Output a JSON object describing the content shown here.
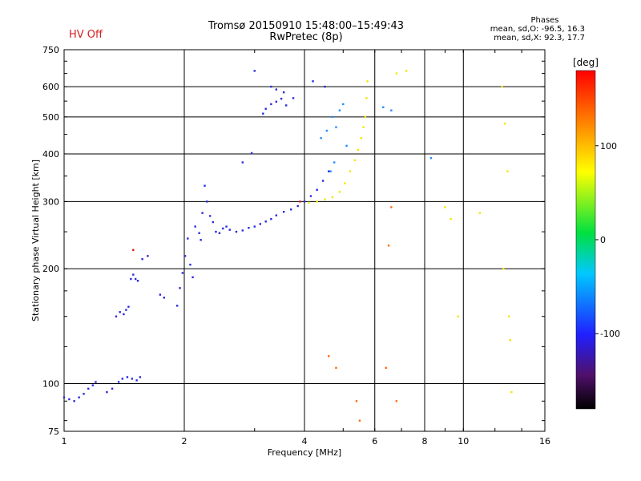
{
  "header": {
    "status": "HV Off",
    "title_line1": "Tromsø 20150910 15:48:00–15:49:43",
    "title_line2": "RwPretec (8p)",
    "stats_title": "Phases",
    "stats_line1": "mean, sd,O: -96.5, 16.3",
    "stats_line2": "mean, sd,X:  92.3, 17.7"
  },
  "colors": {
    "status": "#d42020",
    "axis": "#000000",
    "grid": "#000000"
  },
  "chart_data": {
    "type": "scatter",
    "title": "Tromsø 20150910 15:48:00–15:49:43",
    "subtitle": "RwPretec (8p)",
    "xlabel": "Frequency [MHz]",
    "ylabel": "Stationary phase Virtual Height [km]",
    "x_scale": "log",
    "y_scale": "log",
    "xlim": [
      1,
      16
    ],
    "ylim": [
      75,
      750
    ],
    "x_ticks": [
      1,
      2,
      4,
      6,
      8,
      10,
      16
    ],
    "y_ticks": [
      75,
      100,
      200,
      300,
      400,
      500,
      600,
      750
    ],
    "x_gridlines": [
      2,
      4,
      6,
      8,
      10
    ],
    "y_gridlines": [
      100,
      200,
      300,
      400,
      500,
      600
    ],
    "grid": true,
    "colorbar": {
      "label": "[deg]",
      "range": [
        -180,
        180
      ],
      "ticks": [
        100,
        0,
        -100
      ]
    },
    "series": [
      {
        "color": "blue",
        "points": [
          [
            1.0,
            92
          ],
          [
            1.03,
            91
          ],
          [
            1.06,
            90
          ],
          [
            1.09,
            92
          ],
          [
            1.12,
            94
          ],
          [
            1.15,
            97
          ],
          [
            1.18,
            99
          ],
          [
            1.2,
            101
          ],
          [
            1.28,
            95
          ],
          [
            1.32,
            97
          ],
          [
            1.37,
            101
          ],
          [
            1.4,
            103
          ],
          [
            1.44,
            104
          ],
          [
            1.48,
            103
          ],
          [
            1.52,
            102
          ],
          [
            1.55,
            104
          ],
          [
            1.35,
            150
          ],
          [
            1.38,
            154
          ],
          [
            1.41,
            152
          ],
          [
            1.43,
            156
          ],
          [
            1.45,
            159
          ],
          [
            1.47,
            188
          ],
          [
            1.49,
            193
          ],
          [
            1.51,
            188
          ],
          [
            1.53,
            186
          ],
          [
            1.57,
            212
          ],
          [
            1.62,
            216
          ],
          [
            1.74,
            171
          ],
          [
            1.78,
            168
          ],
          [
            1.92,
            160
          ],
          [
            1.95,
            178
          ],
          [
            1.98,
            195
          ],
          [
            2.01,
            216
          ],
          [
            2.04,
            240
          ],
          [
            2.07,
            205
          ],
          [
            2.1,
            190
          ],
          [
            2.13,
            258
          ],
          [
            2.18,
            248
          ],
          [
            2.2,
            238
          ],
          [
            2.22,
            280
          ],
          [
            2.25,
            330
          ],
          [
            2.28,
            300
          ],
          [
            2.32,
            275
          ],
          [
            2.36,
            265
          ],
          [
            2.4,
            250
          ],
          [
            2.45,
            248
          ],
          [
            2.5,
            255
          ],
          [
            2.55,
            258
          ],
          [
            2.6,
            253
          ],
          [
            2.7,
            250
          ],
          [
            2.8,
            252
          ],
          [
            2.9,
            256
          ],
          [
            3.0,
            258
          ],
          [
            3.1,
            262
          ],
          [
            3.2,
            266
          ],
          [
            3.3,
            270
          ],
          [
            3.4,
            276
          ],
          [
            3.55,
            282
          ],
          [
            3.7,
            286
          ],
          [
            3.85,
            292
          ],
          [
            4.0,
            300
          ],
          [
            4.15,
            310
          ],
          [
            4.3,
            322
          ],
          [
            4.45,
            340
          ],
          [
            4.6,
            360
          ],
          [
            3.2,
            525
          ],
          [
            3.3,
            540
          ],
          [
            3.4,
            548
          ],
          [
            3.5,
            558
          ],
          [
            3.6,
            536
          ],
          [
            3.3,
            600
          ],
          [
            3.4,
            590
          ],
          [
            3.55,
            580
          ],
          [
            3.15,
            510
          ],
          [
            3.75,
            560
          ],
          [
            2.95,
            402
          ],
          [
            2.8,
            380
          ],
          [
            3.0,
            660
          ],
          [
            4.2,
            620
          ],
          [
            4.5,
            600
          ]
        ]
      },
      {
        "color": "lightblue",
        "points": [
          [
            4.4,
            440
          ],
          [
            4.55,
            460
          ],
          [
            4.7,
            500
          ],
          [
            4.8,
            470
          ],
          [
            4.9,
            520
          ],
          [
            5.0,
            540
          ],
          [
            5.1,
            420
          ],
          [
            4.65,
            360
          ],
          [
            4.75,
            380
          ],
          [
            6.3,
            530
          ],
          [
            6.6,
            520
          ],
          [
            8.3,
            390
          ]
        ]
      },
      {
        "color": "yellow",
        "points": [
          [
            4.1,
            298
          ],
          [
            4.3,
            300
          ],
          [
            4.5,
            304
          ],
          [
            4.7,
            308
          ],
          [
            4.9,
            318
          ],
          [
            5.05,
            335
          ],
          [
            5.2,
            360
          ],
          [
            5.35,
            385
          ],
          [
            5.45,
            410
          ],
          [
            5.55,
            440
          ],
          [
            5.62,
            470
          ],
          [
            5.68,
            500
          ],
          [
            5.72,
            560
          ],
          [
            5.75,
            620
          ],
          [
            6.8,
            650
          ],
          [
            7.2,
            660
          ],
          [
            9.0,
            290
          ],
          [
            9.3,
            270
          ],
          [
            12.5,
            600
          ],
          [
            12.7,
            480
          ],
          [
            12.9,
            360
          ],
          [
            13.0,
            150
          ],
          [
            13.1,
            130
          ],
          [
            13.2,
            95
          ],
          [
            12.6,
            200
          ],
          [
            11.0,
            280
          ],
          [
            9.7,
            150
          ]
        ]
      },
      {
        "color": "orange",
        "points": [
          [
            4.6,
            118
          ],
          [
            4.8,
            110
          ],
          [
            5.4,
            90
          ],
          [
            5.5,
            80
          ],
          [
            6.5,
            230
          ],
          [
            6.6,
            290
          ],
          [
            6.8,
            90
          ],
          [
            6.4,
            110
          ]
        ]
      },
      {
        "color": "red",
        "points": [
          [
            1.49,
            224
          ],
          [
            3.9,
            300
          ]
        ]
      }
    ]
  }
}
